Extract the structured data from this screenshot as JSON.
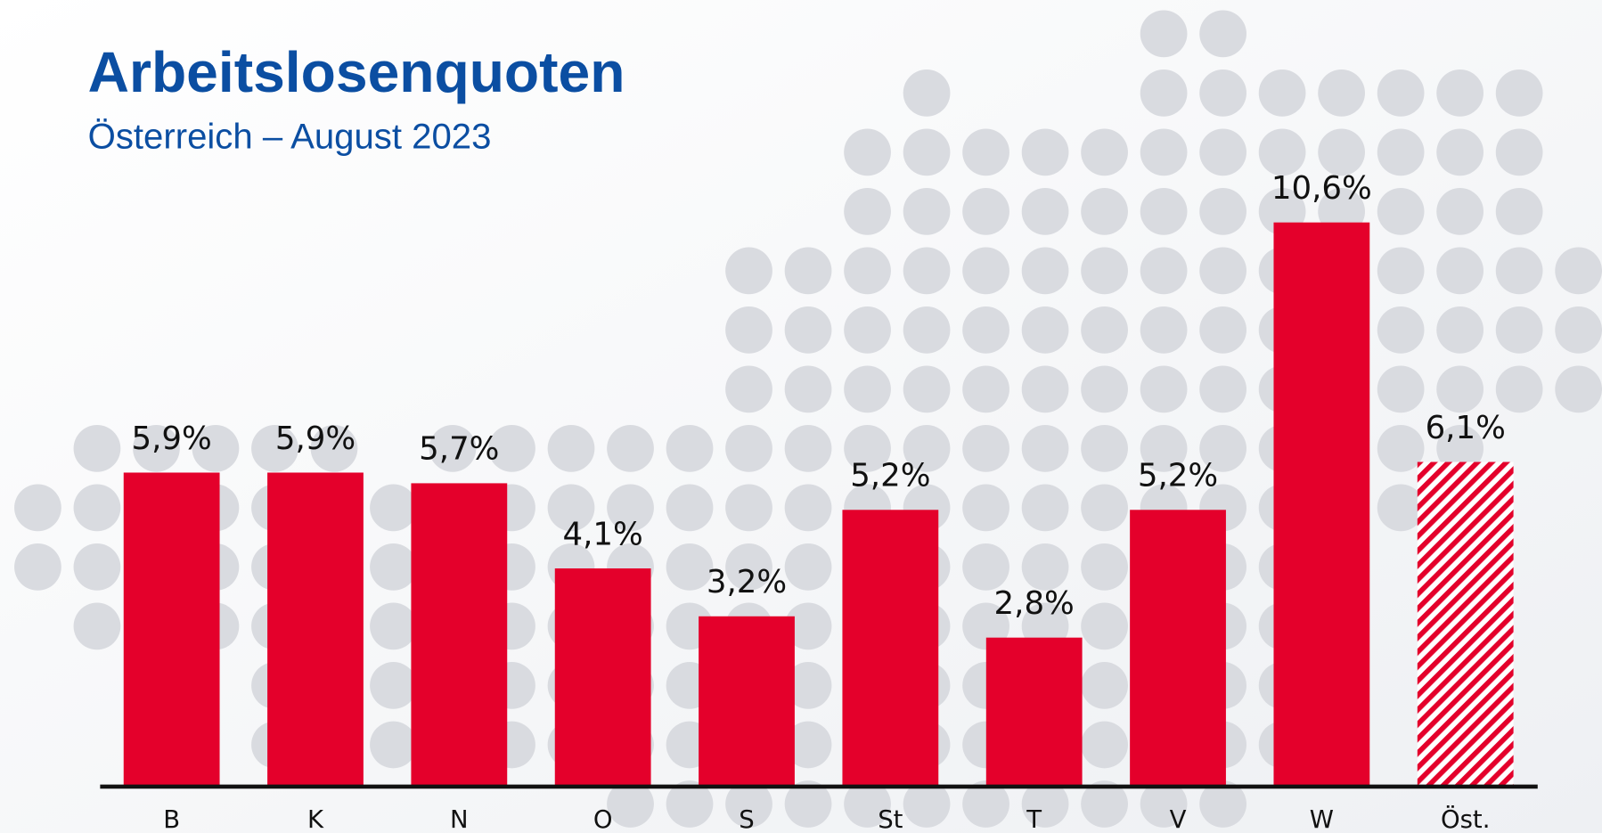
{
  "chart_data": {
    "type": "bar",
    "title": "Arbeitslosenquoten",
    "subtitle": "Österreich – August 2023",
    "categories": [
      "B",
      "K",
      "N",
      "O",
      "S",
      "St",
      "T",
      "V",
      "W",
      "Öst."
    ],
    "values": [
      5.9,
      5.9,
      5.7,
      4.1,
      3.2,
      5.2,
      2.8,
      5.2,
      10.6,
      6.1
    ],
    "value_labels": [
      "5,9%",
      "5,9%",
      "5,7%",
      "4,1%",
      "3,2%",
      "5,2%",
      "2,8%",
      "5,2%",
      "10,6%",
      "6,1%"
    ],
    "color": "#e4002b",
    "hatched": [
      false,
      false,
      false,
      false,
      false,
      false,
      false,
      false,
      false,
      true
    ]
  }
}
